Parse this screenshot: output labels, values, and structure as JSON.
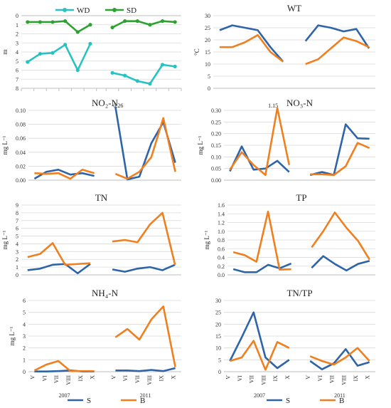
{
  "colors": {
    "S": "#2e64a8",
    "B": "#f07f1f",
    "WD": "#29c2c2",
    "SD": "#2ea22e"
  },
  "chart_data": [
    {
      "id": "depth",
      "type": "line",
      "title": "",
      "ylabel": "m",
      "inverted": true,
      "ylim": [
        0,
        8
      ],
      "ytick_step": 1,
      "ytick_decimals": 0,
      "show_xticks": false,
      "sub_x_ticks": true,
      "categories": [
        "V",
        "VI",
        "VII",
        "VIII",
        "IX",
        "X"
      ],
      "groups": [
        "2007",
        "2011"
      ],
      "legend": [
        {
          "name": "WD",
          "color": "#29c2c2"
        },
        {
          "name": "SD",
          "color": "#2ea22e"
        }
      ],
      "series": [
        {
          "name": "WD",
          "color": "#29c2c2",
          "values2007": [
            5.1,
            4.2,
            4.1,
            3.2,
            6.0,
            3.1
          ],
          "values2011": [
            6.3,
            6.6,
            7.2,
            7.5,
            5.4,
            5.6
          ]
        },
        {
          "name": "SD",
          "color": "#2ea22e",
          "values2007": [
            0.7,
            0.7,
            0.7,
            0.6,
            1.8,
            1.0
          ],
          "values2011": [
            1.3,
            0.6,
            0.6,
            1.0,
            0.6,
            0.7
          ]
        }
      ]
    },
    {
      "id": "wt",
      "type": "line",
      "title": "WT",
      "ylabel": "°C",
      "ylim": [
        0,
        30
      ],
      "ytick_step": 5,
      "ytick_decimals": 0,
      "show_xticks": false,
      "categories": [
        "V",
        "VI",
        "VII",
        "VIII",
        "IX",
        "X"
      ],
      "groups": [
        "2007",
        "2011"
      ],
      "series": [
        {
          "name": "S",
          "color": "#2e64a8",
          "values2007": [
            24,
            26,
            25,
            24,
            17,
            11
          ],
          "values2011": [
            19.5,
            26,
            25,
            23.5,
            24.5,
            16.5
          ]
        },
        {
          "name": "B",
          "color": "#f07f1f",
          "values2007": [
            17,
            17,
            19,
            22,
            15,
            11
          ],
          "values2011": [
            10,
            12,
            16.5,
            21,
            19.5,
            17
          ]
        }
      ]
    },
    {
      "id": "no2",
      "type": "line",
      "title": "NO₂-N",
      "ylabel": "mg L⁻¹",
      "ylim": [
        0,
        0.1
      ],
      "ytick_step": 0.02,
      "ytick_decimals": 2,
      "show_xticks": false,
      "annotation": "0.26",
      "categories": [
        "V",
        "VI",
        "VII",
        "VIII",
        "IX",
        "X"
      ],
      "groups": [
        "2007",
        "2011"
      ],
      "series": [
        {
          "name": "S",
          "color": "#2e64a8",
          "values2007": [
            0.002,
            0.012,
            0.015,
            0.008,
            0.01,
            0.006
          ],
          "values2011": [
            0.105,
            0.001,
            0.005,
            0.053,
            0.083,
            0.025
          ]
        },
        {
          "name": "B",
          "color": "#f07f1f",
          "values2007": [
            0.01,
            0.009,
            0.01,
            0.002,
            0.015,
            0.01
          ],
          "values2011": [
            0.009,
            0.002,
            0.012,
            0.033,
            0.089,
            0.012
          ]
        }
      ]
    },
    {
      "id": "no3",
      "type": "line",
      "title": "NO₃-N",
      "ylabel": "mg L⁻¹",
      "ylim": [
        0,
        0.3
      ],
      "ytick_step": 0.05,
      "ytick_decimals": 2,
      "show_xticks": false,
      "annotation": "1.15",
      "categories": [
        "V",
        "VI",
        "VII",
        "VIII",
        "IX",
        "X"
      ],
      "groups": [
        "2007",
        "2011"
      ],
      "series": [
        {
          "name": "S",
          "color": "#2e64a8",
          "values2007": [
            0.038,
            0.145,
            0.045,
            0.05,
            0.083,
            0.035
          ],
          "values2011": [
            0.022,
            0.035,
            0.022,
            0.24,
            0.18,
            0.178
          ]
        },
        {
          "name": "B",
          "color": "#f07f1f",
          "values2007": [
            0.045,
            0.12,
            0.065,
            0.022,
            0.31,
            0.065
          ],
          "values2011": [
            0.025,
            0.025,
            0.022,
            0.06,
            0.16,
            0.138
          ]
        }
      ]
    },
    {
      "id": "tn",
      "type": "line",
      "title": "TN",
      "ylabel": "mg L⁻¹",
      "ylim": [
        0,
        9
      ],
      "ytick_step": 1,
      "ytick_decimals": 0,
      "show_xticks": false,
      "categories": [
        "V",
        "VI",
        "VII",
        "VIII",
        "IX",
        "X"
      ],
      "groups": [
        "2007",
        "2011"
      ],
      "series": [
        {
          "name": "S",
          "color": "#2e64a8",
          "values2007": [
            0.6,
            0.8,
            1.3,
            1.4,
            0.2,
            1.4
          ],
          "values2011": [
            0.7,
            0.4,
            0.8,
            1.0,
            0.6,
            1.3
          ]
        },
        {
          "name": "B",
          "color": "#f07f1f",
          "values2007": [
            2.3,
            2.7,
            4.1,
            1.3,
            1.4,
            1.5
          ],
          "values2011": [
            4.3,
            4.5,
            4.2,
            6.5,
            8.0,
            1.3
          ]
        }
      ]
    },
    {
      "id": "tp",
      "type": "line",
      "title": "TP",
      "ylabel": "mg L⁻¹",
      "ylim": [
        0,
        1.6
      ],
      "ytick_step": 0.2,
      "ytick_decimals": 1,
      "show_xticks": false,
      "categories": [
        "V",
        "VI",
        "VII",
        "VIII",
        "IX",
        "X"
      ],
      "groups": [
        "2007",
        "2011"
      ],
      "series": [
        {
          "name": "S",
          "color": "#2e64a8",
          "values2007": [
            0.13,
            0.06,
            0.06,
            0.23,
            0.15,
            0.26
          ],
          "values2011": [
            0.16,
            0.43,
            0.25,
            0.1,
            0.25,
            0.32
          ]
        },
        {
          "name": "B",
          "color": "#f07f1f",
          "values2007": [
            0.52,
            0.45,
            0.3,
            1.45,
            0.12,
            0.13
          ],
          "values2011": [
            0.63,
            1.0,
            1.43,
            1.08,
            0.78,
            0.35
          ]
        }
      ]
    },
    {
      "id": "nh4",
      "type": "line",
      "title": "NH₄-N",
      "ylabel": "mg L⁻¹",
      "ylim": [
        0,
        6
      ],
      "ytick_step": 1,
      "ytick_decimals": 0,
      "show_xticks": true,
      "categories": [
        "V",
        "VI",
        "VII",
        "VIII",
        "IX",
        "X"
      ],
      "groups": [
        "2007",
        "2011"
      ],
      "series": [
        {
          "name": "S",
          "color": "#2e64a8",
          "values2007": [
            0.02,
            0.02,
            0.05,
            0.1,
            0.02,
            0.02
          ],
          "values2011": [
            0.1,
            0.1,
            0.05,
            0.15,
            0.05,
            0.3
          ]
        },
        {
          "name": "B",
          "color": "#f07f1f",
          "values2007": [
            0.1,
            0.6,
            0.9,
            0.05,
            0.05,
            0.05
          ],
          "values2011": [
            2.9,
            3.6,
            2.7,
            4.4,
            5.5,
            0.4
          ]
        }
      ]
    },
    {
      "id": "tntp",
      "type": "line",
      "title": "TN/TP",
      "ylabel": "",
      "ylim": [
        0,
        30
      ],
      "ytick_step": 5,
      "ytick_decimals": 0,
      "show_xticks": true,
      "categories": [
        "V",
        "VI",
        "VII",
        "VIII",
        "IX",
        "X"
      ],
      "groups": [
        "2007",
        "2011"
      ],
      "series": [
        {
          "name": "S",
          "color": "#2e64a8",
          "values2007": [
            4.5,
            14.5,
            25.0,
            6.0,
            1.5,
            5.0
          ],
          "values2011": [
            4.5,
            1.0,
            3.5,
            9.5,
            2.5,
            4.0
          ]
        },
        {
          "name": "B",
          "color": "#f07f1f",
          "values2007": [
            4.5,
            6.0,
            13.0,
            0.8,
            12.5,
            10.0
          ],
          "values2011": [
            6.5,
            4.5,
            3.0,
            6.0,
            10.0,
            4.5
          ]
        }
      ]
    }
  ],
  "legends": [
    {
      "items": [
        {
          "name": "S",
          "color": "#2e64a8"
        },
        {
          "name": "B",
          "color": "#f07f1f"
        }
      ]
    },
    {
      "items": [
        {
          "name": "S",
          "color": "#2e64a8"
        },
        {
          "name": "B",
          "color": "#f07f1f"
        }
      ]
    }
  ]
}
